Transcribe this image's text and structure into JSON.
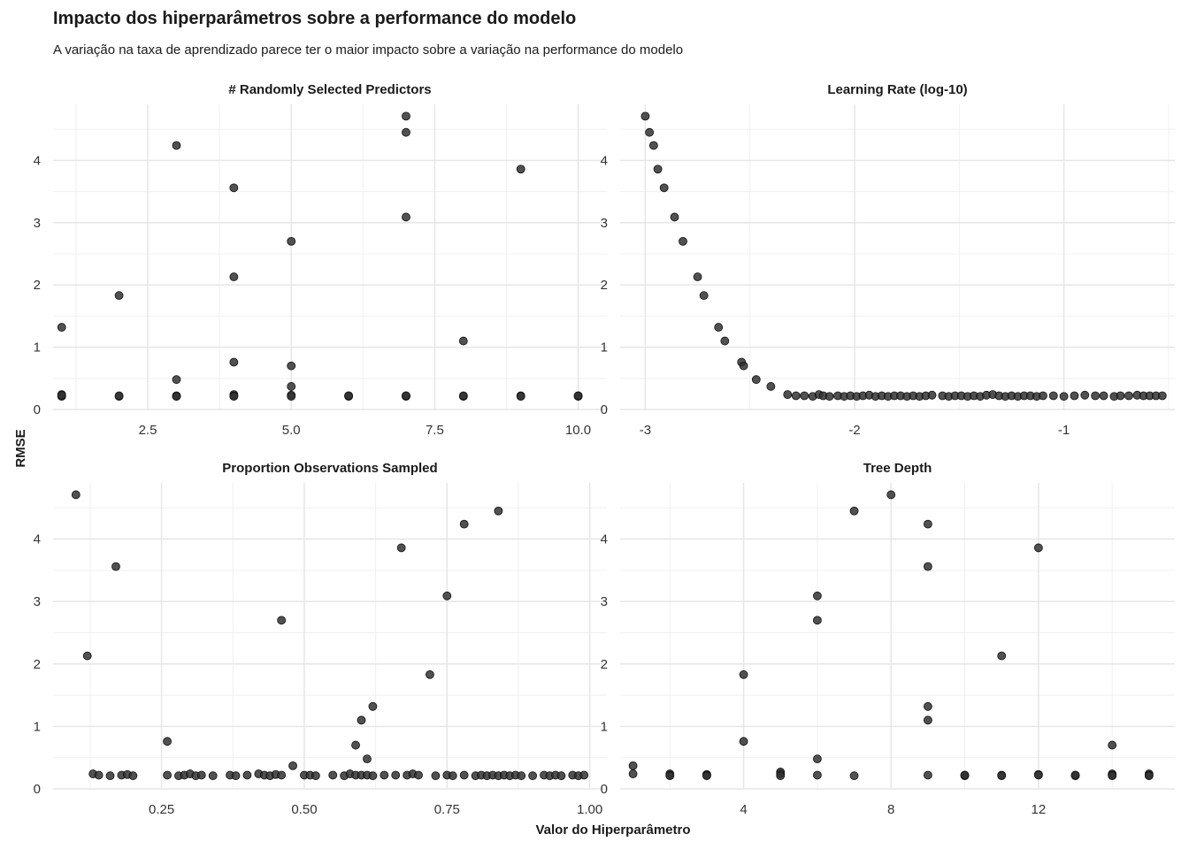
{
  "title": "Impacto dos hiperparâmetros sobre a performance do modelo",
  "subtitle": "A variação na taxa de aprendizado parece ter o maior impacto sobre a variação na performance do modelo",
  "chart_data": {
    "type": "scatter",
    "layout": "facet-2x2",
    "xlabel": "Valor do Hiperparâmetro",
    "ylabel": "RMSE",
    "grid": true,
    "point_color": "#333333",
    "ylim": [
      0,
      4.9
    ],
    "yticks": [
      "0",
      "1",
      "2",
      "3",
      "4"
    ],
    "panels": [
      {
        "title": "# Randomly Selected Predictors",
        "xlim": [
          0.85,
          10.5
        ],
        "xticks": [
          "2.5",
          "5.0",
          "7.5",
          "10.0"
        ],
        "points": [
          [
            1,
            1.32
          ],
          [
            1,
            0.24
          ],
          [
            1,
            0.22
          ],
          [
            1,
            0.21
          ],
          [
            1,
            0.23
          ],
          [
            2,
            1.83
          ],
          [
            2,
            0.21
          ],
          [
            2,
            0.22
          ],
          [
            3,
            4.24
          ],
          [
            3,
            0.48
          ],
          [
            3,
            0.21
          ],
          [
            3,
            0.22
          ],
          [
            3,
            0.21
          ],
          [
            4,
            3.56
          ],
          [
            4,
            2.13
          ],
          [
            4,
            0.76
          ],
          [
            4,
            0.24
          ],
          [
            4,
            0.22
          ],
          [
            4,
            0.21
          ],
          [
            5,
            2.7
          ],
          [
            5,
            0.7
          ],
          [
            5,
            0.37
          ],
          [
            5,
            0.23
          ],
          [
            5,
            0.21
          ],
          [
            6,
            0.22
          ],
          [
            6,
            0.21
          ],
          [
            6,
            0.22
          ],
          [
            7,
            4.71
          ],
          [
            7,
            4.45
          ],
          [
            7,
            3.09
          ],
          [
            7,
            0.22
          ],
          [
            7,
            0.21
          ],
          [
            7,
            0.22
          ],
          [
            8,
            1.1
          ],
          [
            8,
            0.21
          ],
          [
            8,
            0.22
          ],
          [
            9,
            3.86
          ],
          [
            9,
            0.22
          ],
          [
            9,
            0.21
          ],
          [
            10,
            0.22
          ],
          [
            10,
            0.21
          ],
          [
            10,
            0.22
          ]
        ]
      },
      {
        "title": "Learning Rate (log-10)",
        "xlim": [
          -3.12,
          -0.47
        ],
        "xticks": [
          "-3",
          "-2",
          "-1"
        ],
        "points": [
          [
            -3.0,
            4.71
          ],
          [
            -2.98,
            4.45
          ],
          [
            -2.96,
            4.24
          ],
          [
            -2.94,
            3.86
          ],
          [
            -2.91,
            3.56
          ],
          [
            -2.86,
            3.09
          ],
          [
            -2.82,
            2.7
          ],
          [
            -2.75,
            2.13
          ],
          [
            -2.72,
            1.83
          ],
          [
            -2.65,
            1.32
          ],
          [
            -2.62,
            1.1
          ],
          [
            -2.54,
            0.76
          ],
          [
            -2.53,
            0.7
          ],
          [
            -2.47,
            0.48
          ],
          [
            -2.4,
            0.37
          ],
          [
            -2.32,
            0.24
          ],
          [
            -2.28,
            0.22
          ],
          [
            -2.24,
            0.22
          ],
          [
            -2.2,
            0.21
          ],
          [
            -2.17,
            0.24
          ],
          [
            -2.15,
            0.22
          ],
          [
            -2.12,
            0.21
          ],
          [
            -2.08,
            0.22
          ],
          [
            -2.05,
            0.21
          ],
          [
            -2.02,
            0.22
          ],
          [
            -1.99,
            0.21
          ],
          [
            -1.96,
            0.22
          ],
          [
            -1.93,
            0.23
          ],
          [
            -1.9,
            0.21
          ],
          [
            -1.87,
            0.22
          ],
          [
            -1.84,
            0.21
          ],
          [
            -1.81,
            0.22
          ],
          [
            -1.78,
            0.22
          ],
          [
            -1.75,
            0.21
          ],
          [
            -1.72,
            0.22
          ],
          [
            -1.69,
            0.21
          ],
          [
            -1.66,
            0.22
          ],
          [
            -1.63,
            0.23
          ],
          [
            -1.58,
            0.22
          ],
          [
            -1.55,
            0.21
          ],
          [
            -1.52,
            0.22
          ],
          [
            -1.49,
            0.22
          ],
          [
            -1.46,
            0.21
          ],
          [
            -1.43,
            0.22
          ],
          [
            -1.4,
            0.21
          ],
          [
            -1.37,
            0.23
          ],
          [
            -1.34,
            0.24
          ],
          [
            -1.31,
            0.22
          ],
          [
            -1.28,
            0.21
          ],
          [
            -1.25,
            0.22
          ],
          [
            -1.22,
            0.21
          ],
          [
            -1.19,
            0.22
          ],
          [
            -1.16,
            0.22
          ],
          [
            -1.13,
            0.21
          ],
          [
            -1.1,
            0.22
          ],
          [
            -1.05,
            0.22
          ],
          [
            -1.0,
            0.21
          ],
          [
            -0.95,
            0.22
          ],
          [
            -0.9,
            0.23
          ],
          [
            -0.85,
            0.22
          ],
          [
            -0.81,
            0.22
          ],
          [
            -0.76,
            0.21
          ],
          [
            -0.73,
            0.22
          ],
          [
            -0.69,
            0.22
          ],
          [
            -0.65,
            0.23
          ],
          [
            -0.62,
            0.22
          ],
          [
            -0.59,
            0.22
          ],
          [
            -0.56,
            0.22
          ],
          [
            -0.53,
            0.22
          ]
        ]
      },
      {
        "title": "Proportion Observations Sampled",
        "xlim": [
          0.06,
          1.03
        ],
        "xticks": [
          "0.25",
          "0.50",
          "0.75",
          "1.00"
        ],
        "points": [
          [
            0.1,
            4.71
          ],
          [
            0.12,
            2.13
          ],
          [
            0.13,
            0.24
          ],
          [
            0.14,
            0.22
          ],
          [
            0.16,
            0.21
          ],
          [
            0.17,
            3.56
          ],
          [
            0.18,
            0.22
          ],
          [
            0.19,
            0.23
          ],
          [
            0.2,
            0.21
          ],
          [
            0.26,
            0.76
          ],
          [
            0.26,
            0.22
          ],
          [
            0.28,
            0.21
          ],
          [
            0.29,
            0.22
          ],
          [
            0.3,
            0.24
          ],
          [
            0.31,
            0.21
          ],
          [
            0.32,
            0.22
          ],
          [
            0.34,
            0.21
          ],
          [
            0.37,
            0.22
          ],
          [
            0.38,
            0.21
          ],
          [
            0.4,
            0.22
          ],
          [
            0.42,
            0.24
          ],
          [
            0.43,
            0.22
          ],
          [
            0.44,
            0.21
          ],
          [
            0.45,
            0.23
          ],
          [
            0.46,
            2.7
          ],
          [
            0.46,
            0.22
          ],
          [
            0.48,
            0.37
          ],
          [
            0.5,
            0.22
          ],
          [
            0.51,
            0.22
          ],
          [
            0.52,
            0.21
          ],
          [
            0.55,
            0.22
          ],
          [
            0.57,
            0.21
          ],
          [
            0.58,
            0.24
          ],
          [
            0.59,
            0.22
          ],
          [
            0.59,
            0.7
          ],
          [
            0.6,
            1.1
          ],
          [
            0.6,
            0.22
          ],
          [
            0.61,
            0.48
          ],
          [
            0.61,
            0.22
          ],
          [
            0.62,
            1.32
          ],
          [
            0.62,
            0.21
          ],
          [
            0.64,
            0.22
          ],
          [
            0.66,
            0.22
          ],
          [
            0.67,
            3.86
          ],
          [
            0.68,
            0.22
          ],
          [
            0.69,
            0.24
          ],
          [
            0.7,
            0.22
          ],
          [
            0.72,
            1.83
          ],
          [
            0.73,
            0.21
          ],
          [
            0.75,
            3.09
          ],
          [
            0.75,
            0.22
          ],
          [
            0.76,
            0.21
          ],
          [
            0.78,
            4.24
          ],
          [
            0.78,
            0.22
          ],
          [
            0.8,
            0.21
          ],
          [
            0.81,
            0.22
          ],
          [
            0.82,
            0.21
          ],
          [
            0.83,
            0.22
          ],
          [
            0.84,
            4.45
          ],
          [
            0.84,
            0.21
          ],
          [
            0.85,
            0.22
          ],
          [
            0.86,
            0.21
          ],
          [
            0.87,
            0.22
          ],
          [
            0.88,
            0.21
          ],
          [
            0.9,
            0.21
          ],
          [
            0.92,
            0.22
          ],
          [
            0.93,
            0.21
          ],
          [
            0.94,
            0.22
          ],
          [
            0.95,
            0.21
          ],
          [
            0.97,
            0.22
          ],
          [
            0.98,
            0.21
          ],
          [
            0.99,
            0.22
          ]
        ]
      },
      {
        "title": "Tree Depth",
        "xlim": [
          0.65,
          15.7
        ],
        "xticks": [
          "4",
          "8",
          "12"
        ],
        "points": [
          [
            1,
            0.37
          ],
          [
            1,
            0.24
          ],
          [
            2,
            0.24
          ],
          [
            2,
            0.22
          ],
          [
            2,
            0.21
          ],
          [
            3,
            0.23
          ],
          [
            3,
            0.22
          ],
          [
            3,
            0.21
          ],
          [
            4,
            1.83
          ],
          [
            4,
            0.76
          ],
          [
            5,
            0.27
          ],
          [
            5,
            0.24
          ],
          [
            5,
            0.21
          ],
          [
            6,
            3.09
          ],
          [
            6,
            2.7
          ],
          [
            6,
            0.48
          ],
          [
            6,
            0.22
          ],
          [
            7,
            4.45
          ],
          [
            7,
            0.21
          ],
          [
            8,
            4.71
          ],
          [
            9,
            4.24
          ],
          [
            9,
            3.56
          ],
          [
            9,
            1.32
          ],
          [
            9,
            1.1
          ],
          [
            9,
            0.22
          ],
          [
            10,
            0.22
          ],
          [
            10,
            0.21
          ],
          [
            10,
            0.22
          ],
          [
            11,
            2.13
          ],
          [
            11,
            0.22
          ],
          [
            11,
            0.21
          ],
          [
            12,
            3.86
          ],
          [
            12,
            0.23
          ],
          [
            12,
            0.22
          ],
          [
            13,
            0.22
          ],
          [
            13,
            0.21
          ],
          [
            13,
            0.22
          ],
          [
            14,
            0.7
          ],
          [
            14,
            0.24
          ],
          [
            14,
            0.22
          ],
          [
            14,
            0.21
          ],
          [
            15,
            0.24
          ],
          [
            15,
            0.22
          ],
          [
            15,
            0.21
          ]
        ]
      }
    ]
  }
}
